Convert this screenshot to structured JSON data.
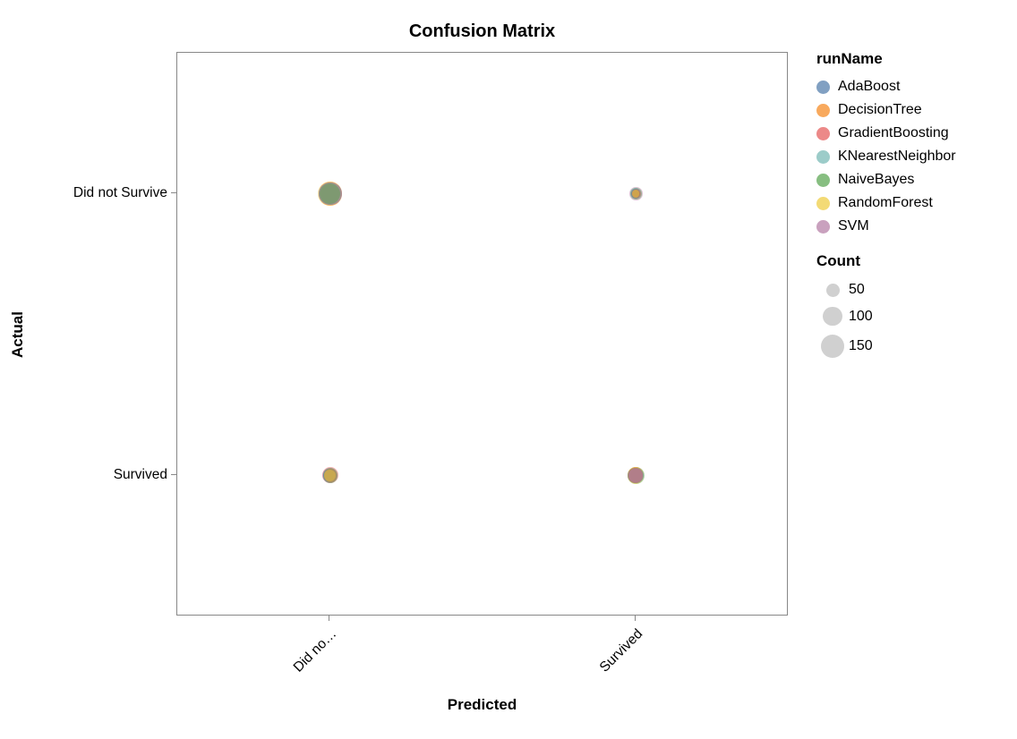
{
  "chart_data": {
    "type": "scatter",
    "title": "Confusion Matrix",
    "xlabel": "Predicted",
    "ylabel": "Actual",
    "x_categories": [
      "Did not Survive",
      "Survived"
    ],
    "x_tick_labels": [
      "Did no…",
      "Survived"
    ],
    "y_categories": [
      "Did not Survive",
      "Survived"
    ],
    "grid": false,
    "legend_position": "right",
    "legend": {
      "color": {
        "title": "runName",
        "entries": [
          {
            "label": "AdaBoost",
            "color": "#4c78a8"
          },
          {
            "label": "DecisionTree",
            "color": "#f58518"
          },
          {
            "label": "GradientBoosting",
            "color": "#e45756"
          },
          {
            "label": "KNearestNeighbor",
            "color": "#72b7b2"
          },
          {
            "label": "NaiveBayes",
            "color": "#54a24b"
          },
          {
            "label": "RandomForest",
            "color": "#eeca3b"
          },
          {
            "label": "SVM",
            "color": "#b279a2"
          }
        ]
      },
      "size": {
        "title": "Count",
        "values": [
          50,
          100,
          150
        ],
        "color": "#b0b0b0"
      }
    },
    "size_scale": {
      "domain_max": 150,
      "radius_at_max_px": 13
    },
    "point_opacity": 0.45,
    "cells": [
      {
        "predicted": "Did not Survive",
        "actual": "Did not Survive",
        "points": [
          {
            "run": "RandomForest",
            "count": 158
          },
          {
            "run": "DecisionTree",
            "count": 152
          },
          {
            "run": "AdaBoost",
            "count": 148
          },
          {
            "run": "SVM",
            "count": 145
          },
          {
            "run": "GradientBoosting",
            "count": 142
          },
          {
            "run": "KNearestNeighbor",
            "count": 138
          },
          {
            "run": "NaiveBayes",
            "count": 122
          }
        ]
      },
      {
        "predicted": "Survived",
        "actual": "Did not Survive",
        "points": [
          {
            "run": "SVM",
            "count": 48
          },
          {
            "run": "NaiveBayes",
            "count": 40
          },
          {
            "run": "KNearestNeighbor",
            "count": 32
          },
          {
            "run": "GradientBoosting",
            "count": 28
          },
          {
            "run": "AdaBoost",
            "count": 24
          },
          {
            "run": "DecisionTree",
            "count": 20
          },
          {
            "run": "RandomForest",
            "count": 16
          }
        ]
      },
      {
        "predicted": "Did not Survive",
        "actual": "Survived",
        "points": [
          {
            "run": "GradientBoosting",
            "count": 72
          },
          {
            "run": "SVM",
            "count": 66
          },
          {
            "run": "NaiveBayes",
            "count": 58
          },
          {
            "run": "KNearestNeighbor",
            "count": 52
          },
          {
            "run": "AdaBoost",
            "count": 48
          },
          {
            "run": "DecisionTree",
            "count": 44
          },
          {
            "run": "RandomForest",
            "count": 40
          }
        ]
      },
      {
        "predicted": "Survived",
        "actual": "Survived",
        "points": [
          {
            "run": "NaiveBayes",
            "count": 82
          },
          {
            "run": "RandomForest",
            "count": 76
          },
          {
            "run": "DecisionTree",
            "count": 72
          },
          {
            "run": "AdaBoost",
            "count": 68
          },
          {
            "run": "KNearestNeighbor",
            "count": 64
          },
          {
            "run": "GradientBoosting",
            "count": 60
          },
          {
            "run": "SVM",
            "count": 56
          }
        ]
      }
    ]
  }
}
